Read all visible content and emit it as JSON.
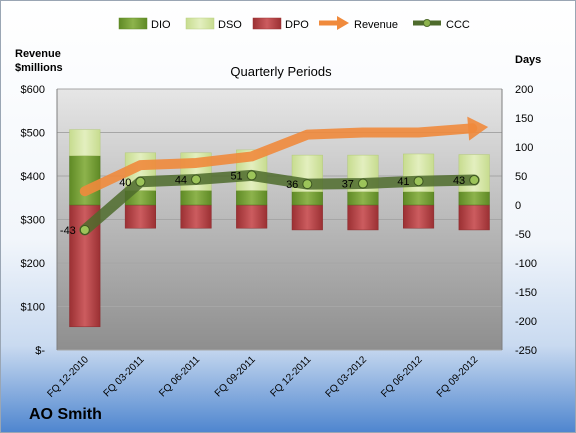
{
  "company": "AO Smith",
  "chart_data": {
    "type": "bar",
    "title": "Quarterly Periods",
    "left_axis_label": [
      "Revenue",
      "$millions"
    ],
    "right_axis_label": "Days",
    "left_ticks": [
      "$-",
      "$100",
      "$200",
      "$300",
      "$400",
      "$500",
      "$600"
    ],
    "right_ticks": [
      "-250",
      "-200",
      "-150",
      "-100",
      "-50",
      "0",
      "50",
      "100",
      "150",
      "200"
    ],
    "left_ylim": [
      0,
      600
    ],
    "right_ylim": [
      -250,
      200
    ],
    "categories": [
      "FQ 12-2010",
      "FQ 03-2011",
      "FQ 06-2011",
      "FQ 09-2011",
      "FQ 12-2011",
      "FQ 03-2012",
      "FQ 06-2012",
      "FQ 09-2012"
    ],
    "legend": [
      "DIO",
      "DSO",
      "DPO",
      "Revenue",
      "CCC"
    ],
    "legend_position": "top",
    "colors": {
      "DIO": "#7a9e3c",
      "DSO": "#d4e6a6",
      "DPO": "#b8474a",
      "Revenue": "#f08a3c",
      "CCC": "#4e6b2c"
    },
    "series": [
      {
        "name": "DIO",
        "values": [
          85,
          25,
          25,
          25,
          23,
          23,
          23,
          23
        ]
      },
      {
        "name": "DSO",
        "values": [
          45,
          65,
          65,
          70,
          63,
          63,
          65,
          64
        ]
      },
      {
        "name": "DPO",
        "values": [
          -210,
          -40,
          -40,
          -40,
          -43,
          -43,
          -40,
          -43
        ]
      },
      {
        "name": "Revenue",
        "values": [
          365,
          425,
          430,
          445,
          495,
          500,
          500,
          510
        ]
      },
      {
        "name": "CCC",
        "values": [
          -43,
          40,
          44,
          51,
          36,
          37,
          41,
          43
        ]
      }
    ],
    "ccc_labels": [
      "-43",
      "40",
      "44",
      "51",
      "36",
      "37",
      "41",
      "43"
    ]
  }
}
